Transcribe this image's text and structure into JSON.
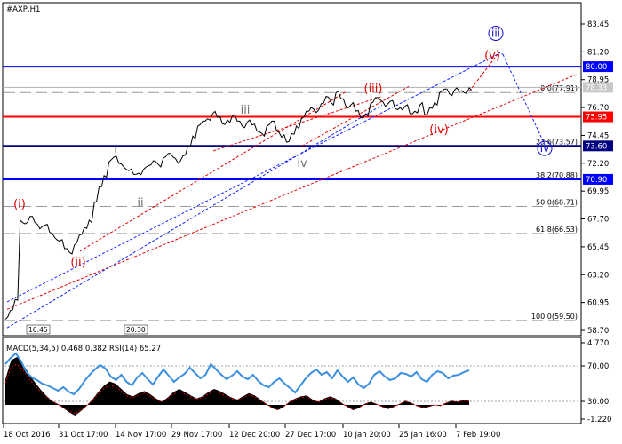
{
  "chart_data": {
    "symbol_label": "#AXP,H1",
    "type": "line",
    "price_axis": {
      "ticks": [
        "83.45",
        "81.20",
        "78.95",
        "76.70",
        "74.45",
        "72.20",
        "69.95",
        "67.70",
        "65.45",
        "63.20",
        "60.95",
        "58.70"
      ],
      "range": [
        58.2,
        84.6
      ]
    },
    "time_axis": {
      "ticks": [
        "18 Oct 2016",
        "31 Oct 17:00",
        "14 Nov 17:00",
        "29 Nov 17:00",
        "12 Dec 20:00",
        "27 Dec 17:00",
        "10 Jan 20:00",
        "25 Jan 16:00",
        "7 Feb 19:00"
      ]
    },
    "current_price": "78.33",
    "horizontal_levels": [
      {
        "label": "80.00",
        "value": 80.0,
        "color": "#0000ff"
      },
      {
        "label": "75.95",
        "value": 75.95,
        "color": "#ff0000"
      },
      {
        "label": "73.60",
        "value": 73.6,
        "color": "#000080"
      },
      {
        "label": "70.90",
        "value": 70.9,
        "color": "#0000ff"
      }
    ],
    "fibonacci": [
      {
        "label": "0.0(77.91)",
        "value": 77.91
      },
      {
        "label": "23.6(73.57)",
        "value": 73.57
      },
      {
        "label": "38.2(70.88)",
        "value": 70.88
      },
      {
        "label": "50.0(68.71)",
        "value": 68.71
      },
      {
        "label": "61.8(66.53)",
        "value": 66.53
      },
      {
        "label": "100.0(59.50)",
        "value": 59.5
      }
    ],
    "wave_labels": [
      {
        "text": "(i)",
        "color": "#e00000"
      },
      {
        "text": "(ii)",
        "color": "#e00000"
      },
      {
        "text": "i",
        "color": "#707070"
      },
      {
        "text": "ii",
        "color": "#707070"
      },
      {
        "text": "iii",
        "color": "#707070"
      },
      {
        "text": "iv",
        "color": "#707070"
      },
      {
        "text": "(iii)",
        "color": "#e00000"
      },
      {
        "text": "(iv)",
        "color": "#e00000"
      },
      {
        "text": "(v)",
        "color": "#e00000"
      },
      {
        "text": "iii",
        "color": "#1010d0"
      },
      {
        "text": "iv",
        "color": "#1010d0"
      }
    ],
    "price_series": [
      59.6,
      60.3,
      61.2,
      67.6,
      67.3,
      67.9,
      67.4,
      66.9,
      67.2,
      66.6,
      66.2,
      65.9,
      65.3,
      65.0,
      65.6,
      66.4,
      67.0,
      67.6,
      69.0,
      70.3,
      71.2,
      72.3,
      72.7,
      72.2,
      71.9,
      71.6,
      71.3,
      71.4,
      71.7,
      72.0,
      72.4,
      72.1,
      72.6,
      73.0,
      72.7,
      72.2,
      72.8,
      73.6,
      74.4,
      75.2,
      75.6,
      75.8,
      76.2,
      75.9,
      75.4,
      75.7,
      76.0,
      75.6,
      75.2,
      75.5,
      75.3,
      74.8,
      74.6,
      75.2,
      75.6,
      74.8,
      74.3,
      73.9,
      74.6,
      75.2,
      75.8,
      76.4,
      76.7,
      76.3,
      77.0,
      77.6,
      77.1,
      77.9,
      77.4,
      76.8,
      76.9,
      76.4,
      75.9,
      76.2,
      77.0,
      77.5,
      77.3,
      76.8,
      77.2,
      76.6,
      76.7,
      76.8,
      76.2,
      76.4,
      76.9,
      76.1,
      76.7,
      77.1,
      77.9,
      78.2,
      77.8,
      78.1,
      78.0,
      77.9,
      78.3
    ],
    "indicator": {
      "title": "MACD(5,34,5) 0.468 0.382 RSI(14) 65.27",
      "ticks": [
        "4.770",
        "70.00",
        "30.00",
        "-1.220"
      ],
      "rsi_levels": [
        70,
        30
      ],
      "rsi_series": [
        72,
        79,
        84,
        75,
        63,
        57,
        54,
        50,
        48,
        45,
        42,
        46,
        41,
        38,
        44,
        53,
        60,
        66,
        71,
        67,
        58,
        54,
        60,
        52,
        48,
        57,
        62,
        55,
        49,
        58,
        66,
        59,
        52,
        57,
        61,
        68,
        62,
        56,
        60,
        72,
        66,
        60,
        55,
        59,
        64,
        58,
        55,
        60,
        53,
        48,
        46,
        52,
        56,
        50,
        45,
        40,
        48,
        56,
        62,
        66,
        60,
        63,
        56,
        65,
        58,
        52,
        57,
        49,
        45,
        50,
        60,
        64,
        58,
        54,
        56,
        62,
        61,
        58,
        63,
        55,
        52,
        60,
        64,
        62,
        56,
        59,
        60,
        63,
        65
      ],
      "macd_series": [
        2.4,
        4.2,
        4.5,
        3.9,
        3.0,
        2.2,
        1.5,
        0.9,
        0.4,
        0.1,
        -0.3,
        -0.7,
        -1.0,
        -0.6,
        -0.1,
        0.5,
        1.2,
        1.8,
        2.2,
        2.0,
        1.5,
        1.0,
        0.8,
        1.1,
        1.3,
        1.0,
        0.6,
        0.3,
        0.7,
        1.2,
        1.5,
        1.2,
        0.9,
        0.6,
        0.8,
        1.2,
        1.5,
        1.3,
        1.0,
        0.7,
        0.5,
        0.8,
        1.1,
        0.9,
        0.5,
        0.1,
        -0.3,
        -0.5,
        -0.2,
        0.3,
        0.6,
        0.8,
        0.9,
        0.5,
        0.3,
        0.6,
        0.8,
        0.6,
        0.2,
        -0.2,
        -0.5,
        -0.3,
        0.1,
        0.3,
        0.1,
        -0.2,
        -0.4,
        -0.2,
        0.1,
        0.4,
        0.2,
        -0.1,
        -0.3,
        -0.2,
        0.0,
        -0.1,
        0.2,
        0.4,
        0.3,
        0.5,
        0.4
      ]
    },
    "bottom_time_labels": [
      "16:45",
      "20:30"
    ]
  }
}
